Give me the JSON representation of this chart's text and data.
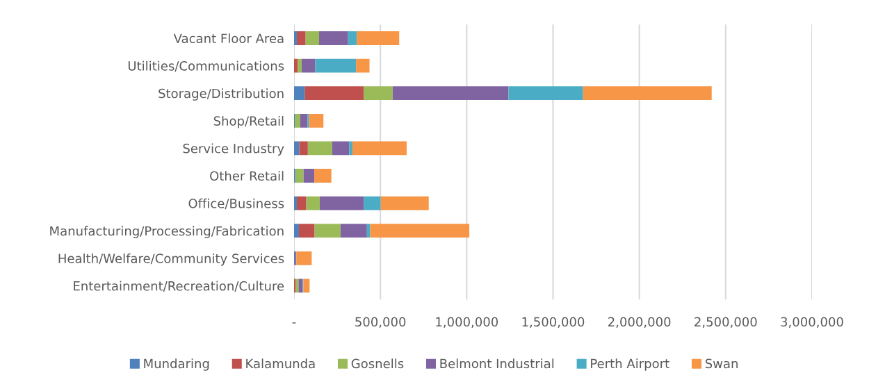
{
  "chart_data": {
    "type": "bar",
    "orientation": "horizontal",
    "stacked": true,
    "categories": [
      "Vacant Floor Area",
      "Utilities/Communications",
      "Storage/Distribution",
      "Shop/Retail",
      "Service Industry",
      "Other Retail",
      "Office/Business",
      "Manufacturing/Processing/Fabrication",
      "Health/Welfare/Community Services",
      "Entertainment/Recreation/Culture"
    ],
    "series": [
      {
        "name": "Mundaring",
        "color": "#4f81bd",
        "values": [
          16000,
          0,
          62000,
          4000,
          30000,
          7000,
          16000,
          28000,
          5000,
          0
        ]
      },
      {
        "name": "Kalamunda",
        "color": "#c0504d",
        "values": [
          51000,
          21000,
          341000,
          0,
          50000,
          0,
          55000,
          91000,
          0,
          9000
        ]
      },
      {
        "name": "Gosnells",
        "color": "#9bbb59",
        "values": [
          78000,
          23000,
          168000,
          32000,
          141000,
          48000,
          78000,
          150000,
          0,
          17000
        ]
      },
      {
        "name": "Belmont Industrial",
        "color": "#8064a2",
        "values": [
          168000,
          79000,
          671000,
          42000,
          98000,
          62000,
          254000,
          153000,
          8000,
          24000
        ]
      },
      {
        "name": "Perth Airport",
        "color": "#4bacc6",
        "values": [
          50000,
          236000,
          432000,
          9000,
          19000,
          0,
          99000,
          19000,
          0,
          4000
        ]
      },
      {
        "name": "Swan",
        "color": "#f79646",
        "values": [
          246000,
          78000,
          745000,
          83000,
          314000,
          99000,
          278000,
          574000,
          89000,
          36000
        ]
      }
    ],
    "xlim": [
      0,
      3000000
    ],
    "xticks": [
      {
        "value": 0,
        "label": "-"
      },
      {
        "value": 500000,
        "label": "500,000"
      },
      {
        "value": 1000000,
        "label": "1,000,000"
      },
      {
        "value": 1500000,
        "label": "1,500,000"
      },
      {
        "value": 2000000,
        "label": "2,000,000"
      },
      {
        "value": 2500000,
        "label": "2,500,000"
      },
      {
        "value": 3000000,
        "label": "3,000,000"
      }
    ],
    "grid": "x",
    "legend": "bottom"
  }
}
